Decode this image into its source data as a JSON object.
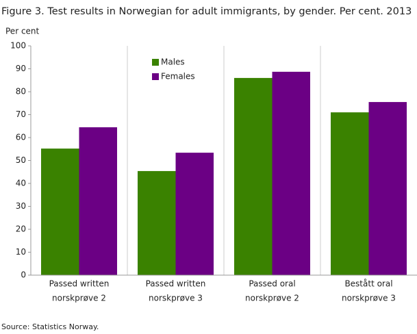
{
  "chart_data": {
    "type": "bar",
    "title": "Figure 3. Test results in Norwegian for adult immigrants, by gender. Per cent. 2013",
    "y_label": "Per cent",
    "source": "Source: Statistics Norway.",
    "categories": [
      [
        "Passed written",
        "norskprøve 2"
      ],
      [
        "Passed written",
        "norskprøve 3"
      ],
      [
        "Passed oral",
        "norskprøve 2"
      ],
      [
        "Bestått oral",
        "norskprøve 3"
      ]
    ],
    "series": [
      {
        "name": "Males",
        "color": "#3a8200",
        "values": [
          55.2,
          45.4,
          86.0,
          71.0
        ]
      },
      {
        "name": "Females",
        "color": "#6b0084",
        "values": [
          64.5,
          53.4,
          88.7,
          75.5
        ]
      }
    ],
    "ylim": [
      0,
      100
    ],
    "yticks": [
      0,
      10,
      20,
      30,
      40,
      50,
      60,
      70,
      80,
      90,
      100
    ]
  }
}
